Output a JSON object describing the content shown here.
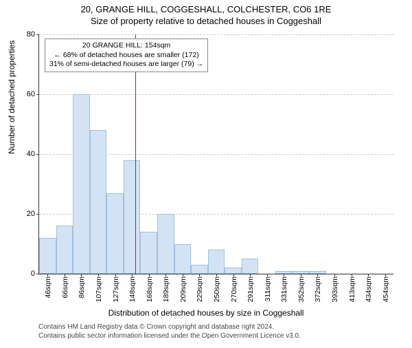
{
  "title_main": "20, GRANGE HILL, COGGESHALL, COLCHESTER, CO6 1RE",
  "title_sub": "Size of property relative to detached houses in Coggeshall",
  "ylabel": "Number of detached properties",
  "xlabel": "Distribution of detached houses by size in Coggeshall",
  "chart": {
    "type": "histogram",
    "ylim": [
      0,
      80
    ],
    "ytick_step": 20,
    "yticks": [
      0,
      20,
      40,
      60,
      80
    ],
    "bar_fill": "#d4e3f3",
    "bar_border": "#9fbfe0",
    "grid_color": "#cccccc",
    "axis_color": "#333333",
    "ref_line_color": "#ff0000",
    "ref_line_x": 154,
    "background": "#ffffff",
    "x_range": [
      40,
      460
    ],
    "categories": [
      "46sqm",
      "66sqm",
      "86sqm",
      "107sqm",
      "127sqm",
      "148sqm",
      "168sqm",
      "189sqm",
      "209sqm",
      "229sqm",
      "250sqm",
      "270sqm",
      "291sqm",
      "311sqm",
      "331sqm",
      "352sqm",
      "372sqm",
      "393sqm",
      "413sqm",
      "434sqm",
      "454sqm"
    ],
    "values": [
      12,
      16,
      60,
      48,
      27,
      38,
      14,
      20,
      10,
      3,
      8,
      2,
      5,
      0,
      1,
      1,
      1,
      0,
      0,
      0,
      0
    ],
    "bar_width_ratio": 1.0,
    "label_fontsize": 12,
    "tick_fontsize": 11
  },
  "annot": {
    "lines": [
      "20 GRANGE HILL: 154sqm",
      "← 68% of detached houses are smaller (172)",
      "31% of semi-detached houses are larger (79) →"
    ],
    "border": "#888888",
    "bg": "#ffffff",
    "fontsize": 10.5
  },
  "footnote": {
    "line1": "Contains HM Land Registry data © Crown copyright and database right 2024.",
    "line2": "Contains public sector information licensed under the Open Government Licence v3.0.",
    "color": "#444444",
    "fontsize": 10
  }
}
